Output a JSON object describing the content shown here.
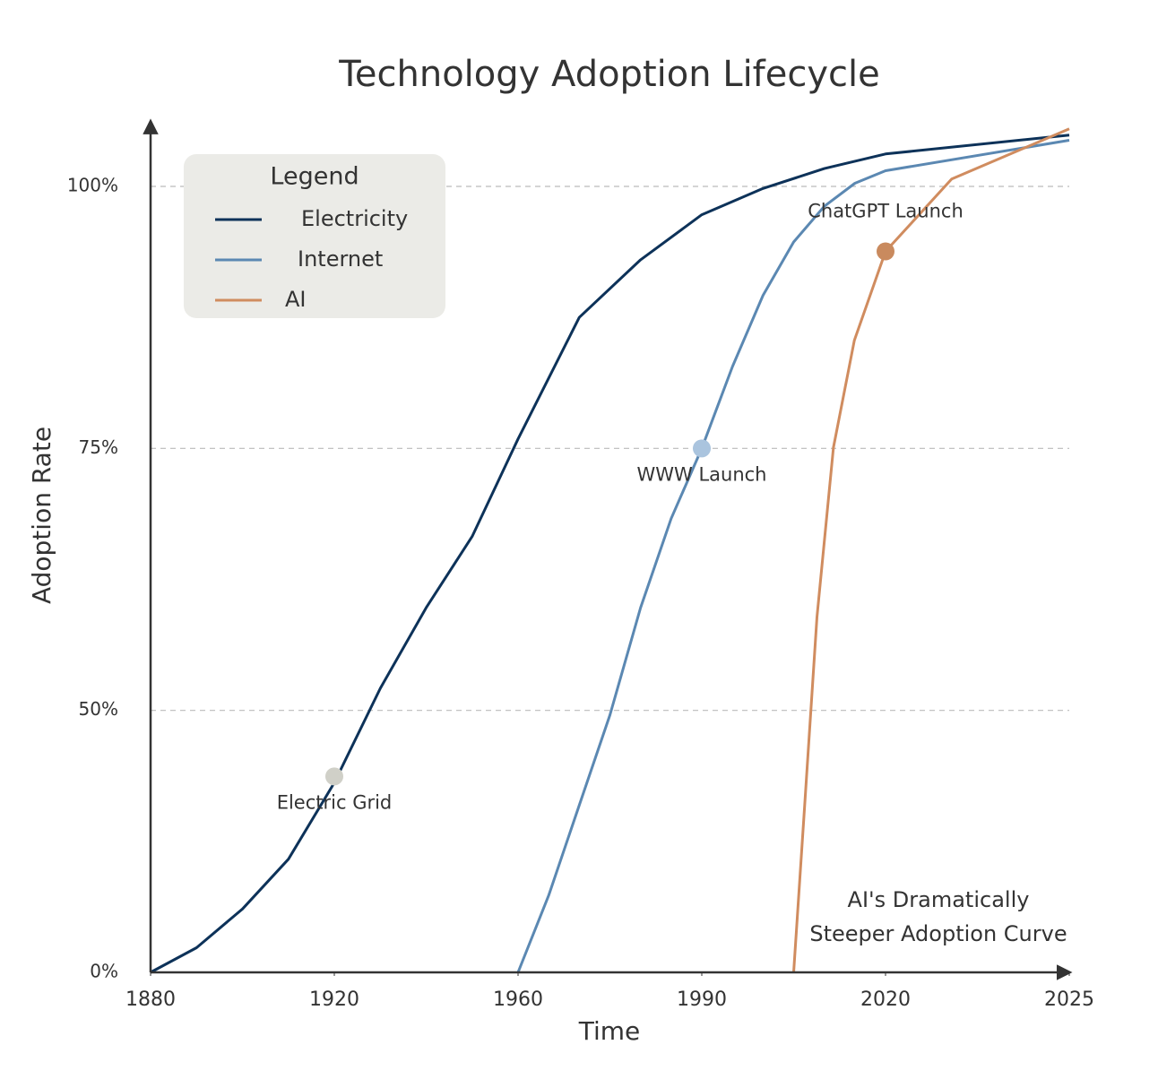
{
  "chart_data": {
    "type": "line",
    "title": "Technology Adoption Lifecycle",
    "x_label": "Time",
    "y_label": "Adoption Rate",
    "xlim": [
      1880,
      2025
    ],
    "xticks": [
      1880,
      1920,
      1960,
      1990,
      2020,
      2025
    ],
    "ylim": [
      0,
      106
    ],
    "yticks": [
      {
        "value": 0,
        "label": "0%"
      },
      {
        "value": 50,
        "label": "50%"
      },
      {
        "value": 75,
        "label": "75%"
      },
      {
        "value": 100,
        "label": "100%"
      }
    ],
    "grid": true,
    "legend_title": "Legend",
    "legend_position": "upper left",
    "series": [
      {
        "name": "Electricity",
        "color": "#0d3259",
        "x": [
          1880,
          1890,
          1900,
          1910,
          1920,
          1930,
          1940,
          1950,
          1960,
          1970,
          1980,
          1990,
          2000,
          2010,
          2020,
          2025
        ],
        "values": [
          0,
          4.7,
          12.1,
          21.6,
          36.2,
          52.1,
          59.8,
          66.6,
          75.9,
          87.5,
          93.0,
          97.3,
          99.8,
          101.7,
          103.1,
          104.9
        ]
      },
      {
        "name": "Internet",
        "color": "#5b88b2",
        "x": [
          1960,
          1965,
          1970,
          1975,
          1980,
          1985,
          1990,
          1995,
          2000,
          2005,
          2010,
          2015,
          2020,
          2025
        ],
        "values": [
          0,
          14.7,
          31.9,
          49.1,
          59.8,
          68.3,
          75,
          82.8,
          89.6,
          94.7,
          98.1,
          100.3,
          101.5,
          104.4
        ]
      },
      {
        "name": "AI",
        "color": "#d08c5f",
        "x": [
          2005,
          2006.8,
          2008.8,
          2011.5,
          2014.9,
          2020,
          2021.8,
          2025
        ],
        "values": [
          0,
          31.9,
          58.9,
          75.1,
          85.3,
          93.8,
          100.7,
          105.5
        ]
      }
    ],
    "annotations": [
      {
        "text": "Electric Grid",
        "x": 1920,
        "y": 37.4,
        "color": "#d0d0c8"
      },
      {
        "text": "WWW Launch",
        "x": 1990,
        "y": 75,
        "color": "#aac4de"
      },
      {
        "text": "ChatGPT Launch",
        "x": 2020,
        "y": 93.8,
        "color": "#c98a5e"
      }
    ],
    "note": [
      "AI's Dramatically",
      "Steeper Adoption Curve"
    ]
  }
}
